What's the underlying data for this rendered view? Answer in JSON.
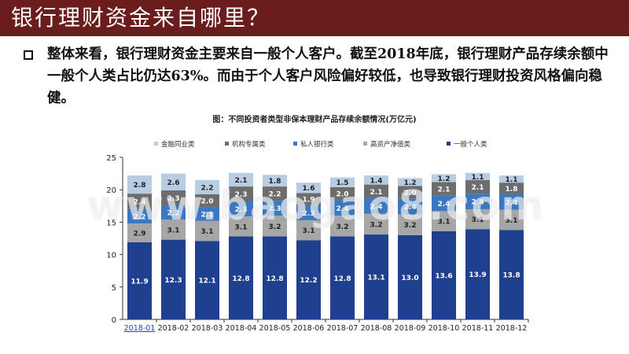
{
  "header": {
    "title": "银行理财资金来自哪里？"
  },
  "body": {
    "paragraph": "整体来看，银行理财资金主要来自一般个人客户。截至2018年底，银行理财产品存续余额中一般个人类占比仍达63%。而由于个人客户风险偏好较低，也导致银行理财投资风格偏向稳健。"
  },
  "watermark": "www.baogao8.com",
  "chart_data": {
    "type": "bar",
    "stacked": true,
    "title": "图：不同投资者类型非保本理财产品存续余额情况(万亿元)",
    "xlabel": "",
    "ylabel": "",
    "categories": [
      "2018-01",
      "2018-02",
      "2018-03",
      "2018-04",
      "2018-05",
      "2018-06",
      "2018-07",
      "2018-08",
      "2018-09",
      "2018-10",
      "2018-11",
      "2018-12"
    ],
    "ylim": [
      0,
      25
    ],
    "yticks": [
      0,
      5,
      10,
      15,
      20,
      25
    ],
    "legend_position": "top",
    "series": [
      {
        "name": "一般个人类",
        "color": "#1f3f8f",
        "values": [
          11.9,
          12.3,
          12.1,
          12.8,
          12.8,
          12.2,
          12.8,
          13.1,
          13.0,
          13.6,
          13.9,
          13.8
        ]
      },
      {
        "name": "高资产净值类",
        "color": "#a6a6a6",
        "values": [
          2.9,
          3.1,
          3.1,
          3.1,
          3.2,
          3.1,
          3.2,
          3.2,
          3.2,
          3.1,
          3.1,
          3.1
        ]
      },
      {
        "name": "私人银行类",
        "color": "#3a78c2",
        "values": [
          2.2,
          2.2,
          2.1,
          2.3,
          2.3,
          2.3,
          2.4,
          2.4,
          2.4,
          2.4,
          2.4,
          2.4
        ]
      },
      {
        "name": "机构专属类",
        "color": "#6d6d6d",
        "values": [
          2.4,
          2.3,
          2.0,
          2.3,
          2.2,
          1.9,
          2.0,
          2.1,
          2.0,
          2.1,
          2.1,
          1.8
        ]
      },
      {
        "name": "金融同业类",
        "color": "#b8cce4",
        "values": [
          2.8,
          2.6,
          2.2,
          2.1,
          1.8,
          1.6,
          1.5,
          1.4,
          1.2,
          1.2,
          1.1,
          1.1
        ]
      }
    ],
    "legend_order": [
      "金融同业类",
      "机构专属类",
      "私人银行类",
      "高资产净值类",
      "一般个人类"
    ]
  }
}
